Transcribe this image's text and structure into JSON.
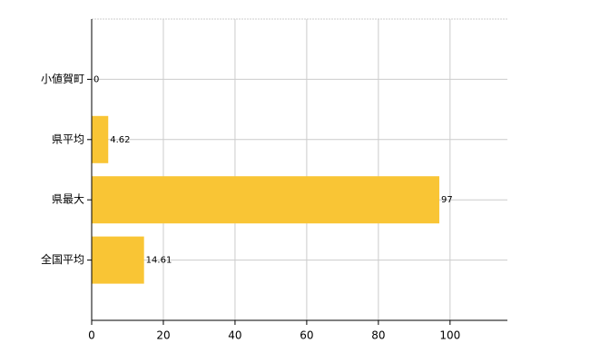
{
  "chart_data": {
    "type": "hbar",
    "categories": [
      "小値賀町",
      "県平均",
      "県最大",
      "全国平均"
    ],
    "values": [
      0,
      4.62,
      97,
      14.61
    ],
    "color": "#f9c535",
    "xlim": [
      0,
      116
    ],
    "xticks": [
      0,
      20,
      40,
      60,
      80,
      100
    ],
    "grid": true
  }
}
